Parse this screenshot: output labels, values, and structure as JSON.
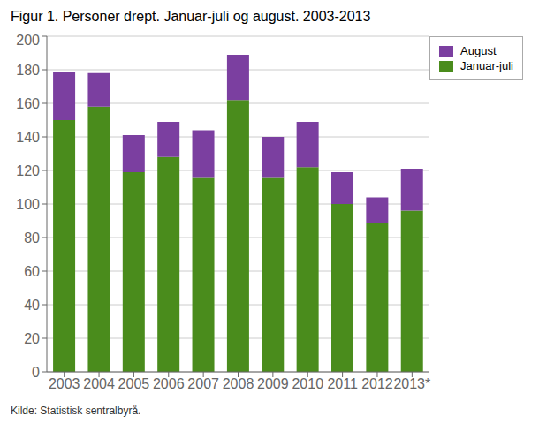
{
  "chart_data": {
    "type": "bar",
    "title": "Figur 1. Personer drept. Januar-juli og august. 2003-2013",
    "annotations": [
      "Kilde: Statistisk sentralbyrå."
    ],
    "categories": [
      "2003",
      "2004",
      "2005",
      "2006",
      "2007",
      "2008",
      "2009",
      "2010",
      "2011",
      "2012",
      "2013*"
    ],
    "series": [
      {
        "name": "Januar-juli",
        "color": "#4a8c1c",
        "values": [
          150,
          158,
          119,
          128,
          116,
          162,
          116,
          122,
          100,
          89,
          96
        ]
      },
      {
        "name": "August",
        "color": "#7b3fa0",
        "values": [
          29,
          20,
          22,
          21,
          28,
          27,
          24,
          27,
          19,
          15,
          25
        ]
      }
    ],
    "stacked": true,
    "ylim": [
      0,
      200
    ],
    "yticks": [
      0,
      20,
      40,
      60,
      80,
      100,
      120,
      140,
      160,
      180,
      200
    ],
    "grid": true,
    "legend": "upper right"
  }
}
